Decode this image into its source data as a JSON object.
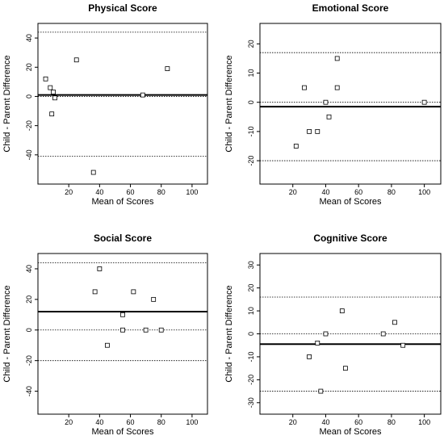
{
  "chart_data": [
    {
      "type": "scatter",
      "title": "Physical Score",
      "xlabel": "Mean of Scores",
      "ylabel": "Child - Parent Difference",
      "xlim": [
        0,
        110
      ],
      "ylim": [
        -60,
        50
      ],
      "xticks": [
        20,
        40,
        60,
        80,
        100
      ],
      "yticks": [
        -40,
        -20,
        0,
        20,
        40
      ],
      "mean_difference": 1,
      "zero_line": 0,
      "limits_of_agreement": [
        -41,
        44
      ],
      "points": [
        {
          "x": 5,
          "y": 12
        },
        {
          "x": 8,
          "y": 6
        },
        {
          "x": 9,
          "y": -12
        },
        {
          "x": 10,
          "y": 3
        },
        {
          "x": 11,
          "y": -1
        },
        {
          "x": 25,
          "y": 25
        },
        {
          "x": 36,
          "y": -52
        },
        {
          "x": 68,
          "y": 1
        },
        {
          "x": 84,
          "y": 19
        }
      ]
    },
    {
      "type": "scatter",
      "title": "Emotional Score",
      "xlabel": "Mean of Scores",
      "ylabel": "Child - Parent Difference",
      "xlim": [
        0,
        110
      ],
      "ylim": [
        -28,
        27
      ],
      "xticks": [
        20,
        40,
        60,
        80,
        100
      ],
      "yticks": [
        -20,
        -10,
        0,
        10,
        20
      ],
      "mean_difference": -1.5,
      "zero_line": 0,
      "limits_of_agreement": [
        -20,
        17
      ],
      "points": [
        {
          "x": 22,
          "y": -15
        },
        {
          "x": 27,
          "y": 5
        },
        {
          "x": 30,
          "y": -10
        },
        {
          "x": 35,
          "y": -10
        },
        {
          "x": 40,
          "y": 0
        },
        {
          "x": 42,
          "y": -5
        },
        {
          "x": 47,
          "y": 15
        },
        {
          "x": 47,
          "y": 5
        },
        {
          "x": 100,
          "y": 0
        }
      ]
    },
    {
      "type": "scatter",
      "title": "Social Score",
      "xlabel": "Mean of Scores",
      "ylabel": "Child - Parent Difference",
      "xlim": [
        0,
        110
      ],
      "ylim": [
        -55,
        50
      ],
      "xticks": [
        20,
        40,
        60,
        80,
        100
      ],
      "yticks": [
        -40,
        -20,
        0,
        20,
        40
      ],
      "mean_difference": 12,
      "zero_line": 0,
      "limits_of_agreement": [
        -20,
        44
      ],
      "points": [
        {
          "x": 37,
          "y": 25
        },
        {
          "x": 40,
          "y": 40
        },
        {
          "x": 45,
          "y": -10
        },
        {
          "x": 55,
          "y": 10
        },
        {
          "x": 55,
          "y": 0
        },
        {
          "x": 62,
          "y": 25
        },
        {
          "x": 70,
          "y": 0
        },
        {
          "x": 75,
          "y": 20
        },
        {
          "x": 80,
          "y": 0
        }
      ]
    },
    {
      "type": "scatter",
      "title": "Cognitive Score",
      "xlabel": "Mean of Scores",
      "ylabel": "Child - Parent Difference",
      "xlim": [
        0,
        110
      ],
      "ylim": [
        -35,
        35
      ],
      "xticks": [
        20,
        40,
        60,
        80,
        100
      ],
      "yticks": [
        -30,
        -20,
        -10,
        0,
        10,
        20,
        30
      ],
      "mean_difference": -4.5,
      "zero_line": 0,
      "limits_of_agreement": [
        -25,
        16
      ],
      "points": [
        {
          "x": 30,
          "y": -10
        },
        {
          "x": 35,
          "y": -4
        },
        {
          "x": 37,
          "y": -25
        },
        {
          "x": 40,
          "y": 0
        },
        {
          "x": 50,
          "y": 10
        },
        {
          "x": 52,
          "y": -15
        },
        {
          "x": 75,
          "y": 0
        },
        {
          "x": 82,
          "y": 5
        },
        {
          "x": 87,
          "y": -5
        }
      ]
    }
  ]
}
